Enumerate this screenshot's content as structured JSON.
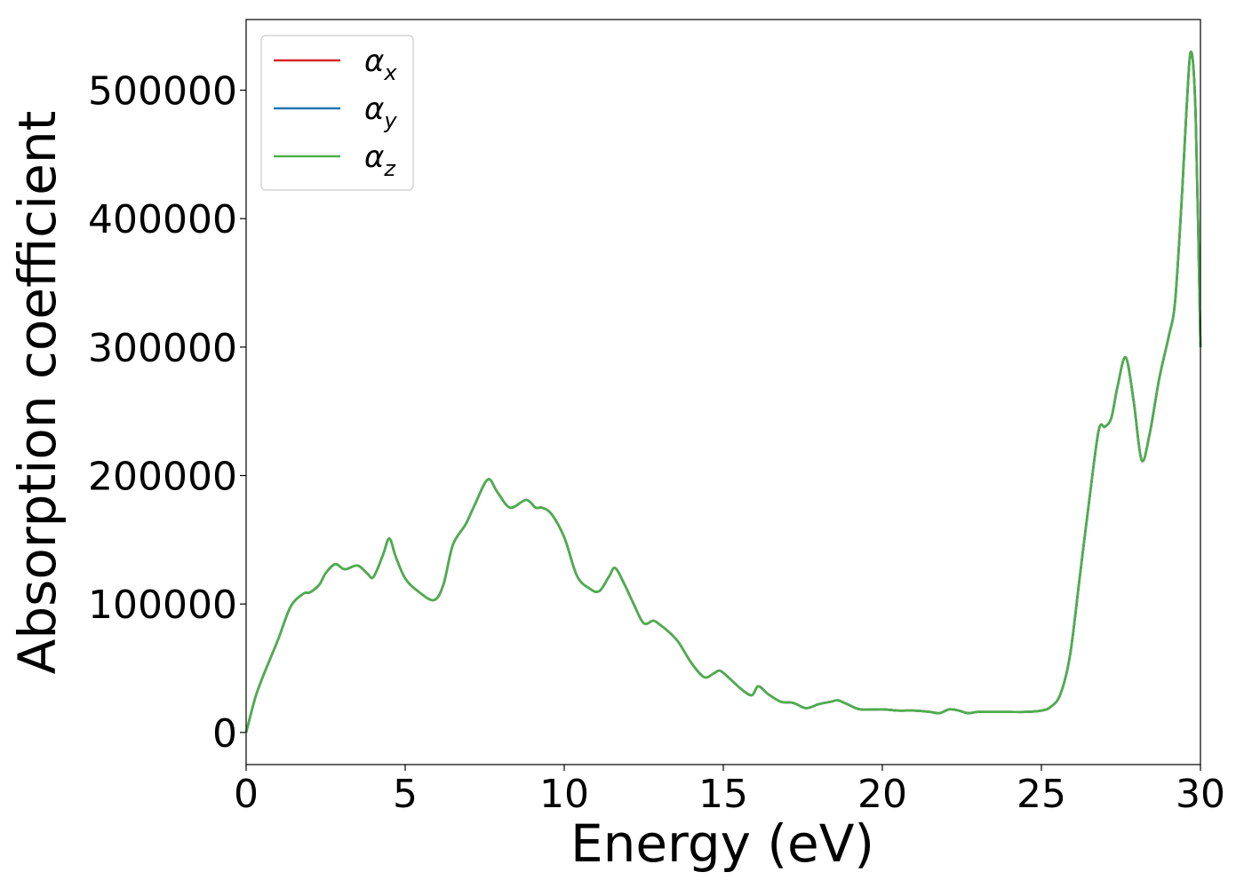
{
  "chart_data": {
    "type": "line",
    "title": "",
    "xlabel": "Energy (eV)",
    "ylabel": "Absorption coefficient",
    "xlim": [
      0,
      30
    ],
    "ylim": [
      -25000,
      555000
    ],
    "xticks": [
      0,
      5,
      10,
      15,
      20,
      25,
      30
    ],
    "xtick_labels": [
      "0",
      "5",
      "10",
      "15",
      "20",
      "25",
      "30"
    ],
    "yticks": [
      0,
      100000,
      200000,
      300000,
      400000,
      500000
    ],
    "ytick_labels": [
      "0",
      "100000",
      "200000",
      "300000",
      "400000",
      "500000"
    ],
    "grid": false,
    "legend_position": "top-left",
    "x": [
      0,
      0.3,
      0.6,
      1.0,
      1.4,
      1.8,
      2.0,
      2.3,
      2.5,
      2.8,
      3.1,
      3.5,
      3.8,
      4.0,
      4.3,
      4.5,
      4.7,
      5.0,
      5.4,
      5.9,
      6.2,
      6.5,
      6.9,
      7.2,
      7.6,
      7.9,
      8.3,
      8.8,
      9.1,
      9.3,
      9.6,
      10.0,
      10.4,
      10.8,
      11.1,
      11.4,
      11.6,
      11.9,
      12.2,
      12.5,
      12.8,
      13.0,
      13.3,
      13.6,
      14.0,
      14.4,
      14.7,
      14.9,
      15.2,
      15.6,
      15.9,
      16.1,
      16.4,
      16.8,
      17.2,
      17.6,
      18.0,
      18.4,
      18.6,
      18.9,
      19.3,
      20.0,
      20.5,
      21.0,
      21.5,
      21.8,
      22.1,
      22.4,
      22.7,
      23.0,
      23.5,
      24.0,
      24.5,
      25.0,
      25.3,
      25.6,
      25.9,
      26.2,
      26.5,
      26.8,
      27.0,
      27.2,
      27.4,
      27.65,
      27.9,
      28.15,
      28.4,
      28.7,
      29.0,
      29.2,
      29.4,
      29.55,
      29.7,
      29.85,
      30.0
    ],
    "series": [
      {
        "name": "αx",
        "color": "#d62728",
        "values": [
          0,
          28000,
          48000,
          72000,
          98000,
          108000,
          109000,
          115000,
          124000,
          131000,
          127000,
          130000,
          124000,
          121000,
          138000,
          151000,
          137000,
          120000,
          110000,
          103000,
          115000,
          146000,
          162000,
          178000,
          197000,
          187000,
          175000,
          181000,
          175000,
          175000,
          170000,
          152000,
          122000,
          112000,
          110000,
          121000,
          128000,
          115000,
          99000,
          85000,
          87000,
          84000,
          78000,
          70000,
          54000,
          43000,
          46000,
          48000,
          42000,
          33000,
          29000,
          36000,
          30000,
          24000,
          23000,
          19000,
          22000,
          24000,
          25000,
          22000,
          18000,
          18000,
          17000,
          17000,
          16000,
          15000,
          18000,
          17000,
          15000,
          16000,
          16000,
          16000,
          16000,
          17000,
          20000,
          30000,
          60000,
          120000,
          180000,
          235000,
          238000,
          245000,
          270000,
          292000,
          258000,
          212000,
          232000,
          275000,
          308000,
          335000,
          410000,
          480000,
          530000,
          480000,
          300000
        ]
      },
      {
        "name": "αy",
        "color": "#1f77b4",
        "values": [
          0,
          28000,
          48000,
          72000,
          98000,
          108000,
          109000,
          115000,
          124000,
          131000,
          127000,
          130000,
          124000,
          121000,
          138000,
          151000,
          137000,
          120000,
          110000,
          103000,
          115000,
          146000,
          162000,
          178000,
          197000,
          187000,
          175000,
          181000,
          175000,
          175000,
          170000,
          152000,
          122000,
          112000,
          110000,
          121000,
          128000,
          115000,
          99000,
          85000,
          87000,
          84000,
          78000,
          70000,
          54000,
          43000,
          46000,
          48000,
          42000,
          33000,
          29000,
          36000,
          30000,
          24000,
          23000,
          19000,
          22000,
          24000,
          25000,
          22000,
          18000,
          18000,
          17000,
          17000,
          16000,
          15000,
          18000,
          17000,
          15000,
          16000,
          16000,
          16000,
          16000,
          17000,
          20000,
          30000,
          60000,
          120000,
          180000,
          235000,
          238000,
          245000,
          270000,
          292000,
          258000,
          212000,
          232000,
          275000,
          308000,
          335000,
          410000,
          480000,
          530000,
          480000,
          300000
        ]
      },
      {
        "name": "αz",
        "color": "#4daf4a",
        "values": [
          0,
          28000,
          48000,
          72000,
          98000,
          108000,
          109000,
          115000,
          124000,
          131000,
          127000,
          130000,
          124000,
          121000,
          138000,
          151000,
          137000,
          120000,
          110000,
          103000,
          115000,
          146000,
          162000,
          178000,
          197000,
          187000,
          175000,
          181000,
          175000,
          175000,
          170000,
          152000,
          122000,
          112000,
          110000,
          121000,
          128000,
          115000,
          99000,
          85000,
          87000,
          84000,
          78000,
          70000,
          54000,
          43000,
          46000,
          48000,
          42000,
          33000,
          29000,
          36000,
          30000,
          24000,
          23000,
          19000,
          22000,
          24000,
          25000,
          22000,
          18000,
          18000,
          17000,
          17000,
          16000,
          15000,
          18000,
          17000,
          15000,
          16000,
          16000,
          16000,
          16000,
          17000,
          20000,
          30000,
          60000,
          120000,
          180000,
          235000,
          238000,
          245000,
          270000,
          292000,
          258000,
          212000,
          232000,
          275000,
          308000,
          335000,
          410000,
          480000,
          530000,
          480000,
          300000
        ]
      }
    ],
    "legend": [
      {
        "symbol": "α",
        "sub": "x"
      },
      {
        "symbol": "α",
        "sub": "y"
      },
      {
        "symbol": "α",
        "sub": "z"
      }
    ]
  }
}
